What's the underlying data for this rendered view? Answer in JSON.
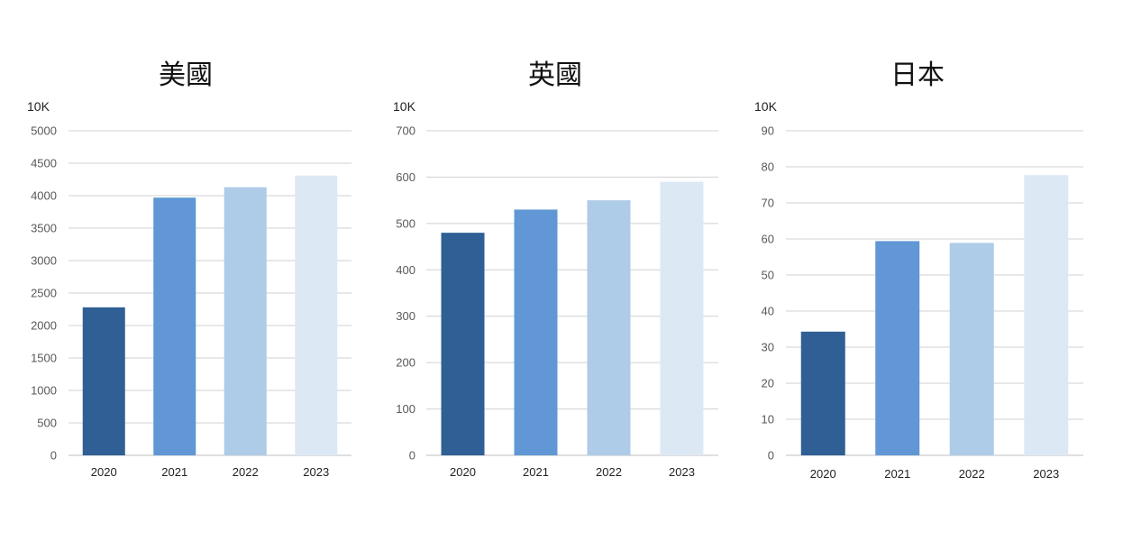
{
  "chart_data": [
    {
      "type": "bar",
      "title": "美國",
      "unit": "10K",
      "categories": [
        "2020",
        "2021",
        "2022",
        "2023"
      ],
      "values": [
        2280,
        3970,
        4130,
        4310
      ],
      "ylim": [
        0,
        5000
      ],
      "yticks": [
        0,
        500,
        1000,
        1500,
        2000,
        2500,
        3000,
        3500,
        4000,
        4500,
        5000
      ],
      "colors": [
        "#2f5f94",
        "#6097d4",
        "#aecbe8",
        "#dde8f5"
      ],
      "grid": true
    },
    {
      "type": "bar",
      "title": "英國",
      "unit": "10K",
      "categories": [
        "2020",
        "2021",
        "2022",
        "2023"
      ],
      "values": [
        480,
        530,
        550,
        590
      ],
      "ylim": [
        0,
        700
      ],
      "yticks": [
        0,
        100,
        200,
        300,
        400,
        500,
        600,
        700
      ],
      "colors": [
        "#2f5f94",
        "#6097d4",
        "#aecbe8",
        "#dde8f5"
      ],
      "grid": true
    },
    {
      "type": "bar",
      "title": "日本",
      "unit": "10K",
      "categories": [
        "2020",
        "2021",
        "2022",
        "2023"
      ],
      "values": [
        34.3,
        59.4,
        58.9,
        77.7
      ],
      "ylim": [
        0,
        90
      ],
      "yticks": [
        0,
        10,
        20,
        30,
        40,
        50,
        60,
        70,
        80,
        90
      ],
      "colors": [
        "#2f5f94",
        "#6097d4",
        "#aecbe8",
        "#dde8f5"
      ],
      "grid": true
    }
  ]
}
